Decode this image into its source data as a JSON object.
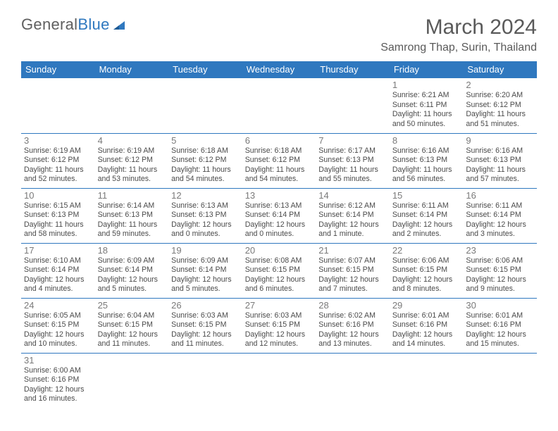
{
  "branding": {
    "logo_part1": "General",
    "logo_part2": "Blue"
  },
  "header": {
    "month_title": "March 2024",
    "location": "Samrong Thap, Surin, Thailand"
  },
  "calendar": {
    "type": "table",
    "day_labels": [
      "Sunday",
      "Monday",
      "Tuesday",
      "Wednesday",
      "Thursday",
      "Friday",
      "Saturday"
    ],
    "header_bg": "#2f78bf",
    "header_fg": "#ffffff",
    "cell_border_color": "#2f78bf",
    "background_color": "#ffffff",
    "text_color": "#4a4a4a",
    "weeks": [
      [
        {},
        {},
        {},
        {},
        {},
        {
          "day": "1",
          "sunrise": "Sunrise: 6:21 AM",
          "sunset": "Sunset: 6:11 PM",
          "daylight": "Daylight: 11 hours and 50 minutes."
        },
        {
          "day": "2",
          "sunrise": "Sunrise: 6:20 AM",
          "sunset": "Sunset: 6:12 PM",
          "daylight": "Daylight: 11 hours and 51 minutes."
        }
      ],
      [
        {
          "day": "3",
          "sunrise": "Sunrise: 6:19 AM",
          "sunset": "Sunset: 6:12 PM",
          "daylight": "Daylight: 11 hours and 52 minutes."
        },
        {
          "day": "4",
          "sunrise": "Sunrise: 6:19 AM",
          "sunset": "Sunset: 6:12 PM",
          "daylight": "Daylight: 11 hours and 53 minutes."
        },
        {
          "day": "5",
          "sunrise": "Sunrise: 6:18 AM",
          "sunset": "Sunset: 6:12 PM",
          "daylight": "Daylight: 11 hours and 54 minutes."
        },
        {
          "day": "6",
          "sunrise": "Sunrise: 6:18 AM",
          "sunset": "Sunset: 6:12 PM",
          "daylight": "Daylight: 11 hours and 54 minutes."
        },
        {
          "day": "7",
          "sunrise": "Sunrise: 6:17 AM",
          "sunset": "Sunset: 6:13 PM",
          "daylight": "Daylight: 11 hours and 55 minutes."
        },
        {
          "day": "8",
          "sunrise": "Sunrise: 6:16 AM",
          "sunset": "Sunset: 6:13 PM",
          "daylight": "Daylight: 11 hours and 56 minutes."
        },
        {
          "day": "9",
          "sunrise": "Sunrise: 6:16 AM",
          "sunset": "Sunset: 6:13 PM",
          "daylight": "Daylight: 11 hours and 57 minutes."
        }
      ],
      [
        {
          "day": "10",
          "sunrise": "Sunrise: 6:15 AM",
          "sunset": "Sunset: 6:13 PM",
          "daylight": "Daylight: 11 hours and 58 minutes."
        },
        {
          "day": "11",
          "sunrise": "Sunrise: 6:14 AM",
          "sunset": "Sunset: 6:13 PM",
          "daylight": "Daylight: 11 hours and 59 minutes."
        },
        {
          "day": "12",
          "sunrise": "Sunrise: 6:13 AM",
          "sunset": "Sunset: 6:13 PM",
          "daylight": "Daylight: 12 hours and 0 minutes."
        },
        {
          "day": "13",
          "sunrise": "Sunrise: 6:13 AM",
          "sunset": "Sunset: 6:14 PM",
          "daylight": "Daylight: 12 hours and 0 minutes."
        },
        {
          "day": "14",
          "sunrise": "Sunrise: 6:12 AM",
          "sunset": "Sunset: 6:14 PM",
          "daylight": "Daylight: 12 hours and 1 minute."
        },
        {
          "day": "15",
          "sunrise": "Sunrise: 6:11 AM",
          "sunset": "Sunset: 6:14 PM",
          "daylight": "Daylight: 12 hours and 2 minutes."
        },
        {
          "day": "16",
          "sunrise": "Sunrise: 6:11 AM",
          "sunset": "Sunset: 6:14 PM",
          "daylight": "Daylight: 12 hours and 3 minutes."
        }
      ],
      [
        {
          "day": "17",
          "sunrise": "Sunrise: 6:10 AM",
          "sunset": "Sunset: 6:14 PM",
          "daylight": "Daylight: 12 hours and 4 minutes."
        },
        {
          "day": "18",
          "sunrise": "Sunrise: 6:09 AM",
          "sunset": "Sunset: 6:14 PM",
          "daylight": "Daylight: 12 hours and 5 minutes."
        },
        {
          "day": "19",
          "sunrise": "Sunrise: 6:09 AM",
          "sunset": "Sunset: 6:14 PM",
          "daylight": "Daylight: 12 hours and 5 minutes."
        },
        {
          "day": "20",
          "sunrise": "Sunrise: 6:08 AM",
          "sunset": "Sunset: 6:15 PM",
          "daylight": "Daylight: 12 hours and 6 minutes."
        },
        {
          "day": "21",
          "sunrise": "Sunrise: 6:07 AM",
          "sunset": "Sunset: 6:15 PM",
          "daylight": "Daylight: 12 hours and 7 minutes."
        },
        {
          "day": "22",
          "sunrise": "Sunrise: 6:06 AM",
          "sunset": "Sunset: 6:15 PM",
          "daylight": "Daylight: 12 hours and 8 minutes."
        },
        {
          "day": "23",
          "sunrise": "Sunrise: 6:06 AM",
          "sunset": "Sunset: 6:15 PM",
          "daylight": "Daylight: 12 hours and 9 minutes."
        }
      ],
      [
        {
          "day": "24",
          "sunrise": "Sunrise: 6:05 AM",
          "sunset": "Sunset: 6:15 PM",
          "daylight": "Daylight: 12 hours and 10 minutes."
        },
        {
          "day": "25",
          "sunrise": "Sunrise: 6:04 AM",
          "sunset": "Sunset: 6:15 PM",
          "daylight": "Daylight: 12 hours and 11 minutes."
        },
        {
          "day": "26",
          "sunrise": "Sunrise: 6:03 AM",
          "sunset": "Sunset: 6:15 PM",
          "daylight": "Daylight: 12 hours and 11 minutes."
        },
        {
          "day": "27",
          "sunrise": "Sunrise: 6:03 AM",
          "sunset": "Sunset: 6:15 PM",
          "daylight": "Daylight: 12 hours and 12 minutes."
        },
        {
          "day": "28",
          "sunrise": "Sunrise: 6:02 AM",
          "sunset": "Sunset: 6:16 PM",
          "daylight": "Daylight: 12 hours and 13 minutes."
        },
        {
          "day": "29",
          "sunrise": "Sunrise: 6:01 AM",
          "sunset": "Sunset: 6:16 PM",
          "daylight": "Daylight: 12 hours and 14 minutes."
        },
        {
          "day": "30",
          "sunrise": "Sunrise: 6:01 AM",
          "sunset": "Sunset: 6:16 PM",
          "daylight": "Daylight: 12 hours and 15 minutes."
        }
      ],
      [
        {
          "day": "31",
          "sunrise": "Sunrise: 6:00 AM",
          "sunset": "Sunset: 6:16 PM",
          "daylight": "Daylight: 12 hours and 16 minutes."
        },
        {},
        {},
        {},
        {},
        {},
        {}
      ]
    ]
  }
}
